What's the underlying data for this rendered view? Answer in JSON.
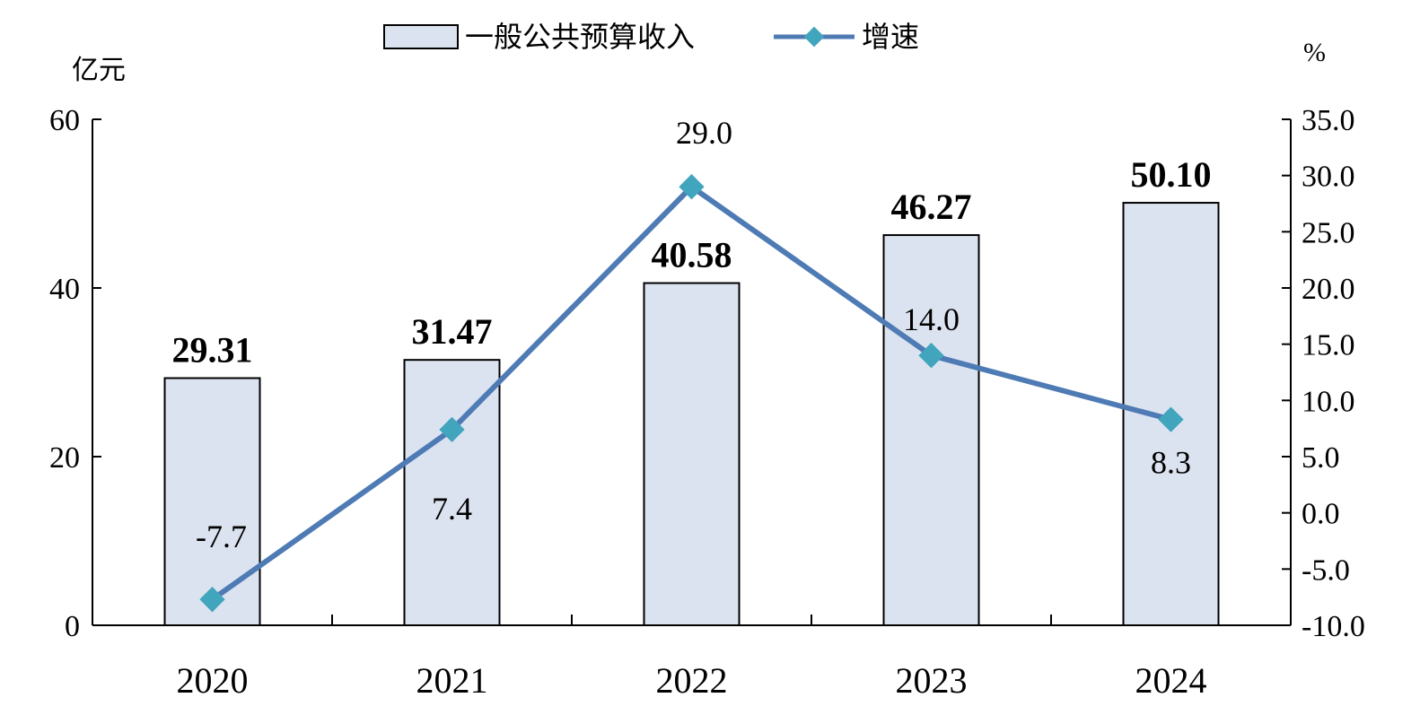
{
  "chart_data": {
    "type": "bar",
    "categories": [
      "2020",
      "2021",
      "2022",
      "2023",
      "2024"
    ],
    "series": [
      {
        "name": "一般公共预算收入",
        "type": "bar",
        "axis": "left",
        "values": [
          29.31,
          31.47,
          40.58,
          46.27,
          50.1
        ],
        "labels": [
          "29.31",
          "31.47",
          "40.58",
          "46.27",
          "50.10"
        ]
      },
      {
        "name": "增速",
        "type": "line",
        "axis": "right",
        "values": [
          -7.7,
          7.4,
          29.0,
          14.0,
          8.3
        ],
        "labels": [
          "-7.7",
          "7.4",
          "29.0",
          "14.0",
          "8.3"
        ]
      }
    ],
    "left_axis": {
      "unit": "亿元",
      "ylim": [
        0,
        60
      ],
      "ticks": [
        "0",
        "20",
        "40",
        "60"
      ]
    },
    "right_axis": {
      "unit": "%",
      "ylim": [
        -10,
        35
      ],
      "ticks": [
        "-10.0",
        "-5.0",
        "0.0",
        "5.0",
        "10.0",
        "15.0",
        "20.0",
        "25.0",
        "30.0",
        "35.0"
      ]
    },
    "legend_position": "top",
    "grid": false,
    "colors": {
      "bar_fill": "#dce3f0",
      "bar_stroke": "#000000",
      "line": "#4f7bb5",
      "marker": "#41a5bd"
    }
  }
}
